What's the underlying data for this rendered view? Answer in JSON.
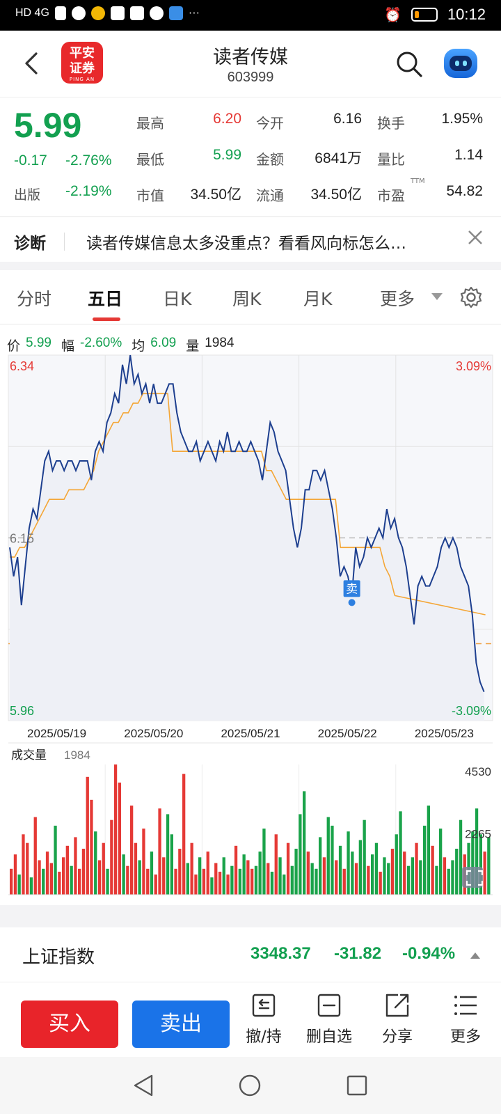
{
  "status_bar": {
    "left_indicators": "HD 4G",
    "more": "···",
    "time": "10:12",
    "battery_level": 0.2
  },
  "header": {
    "back_icon": "chevron-left-icon",
    "broker_logo": {
      "line1": "平安",
      "line2": "证券",
      "sub": "PING AN"
    },
    "title": "读者传媒",
    "code": "603999",
    "search_icon": "search-icon",
    "assistant_icon": "robot-icon"
  },
  "quote": {
    "price": "5.99",
    "change": "-0.17",
    "change_pct": "-2.76%",
    "sector_label": "出版",
    "sector_pct": "-2.19%",
    "fields": [
      {
        "label": "最高",
        "value": "6.20",
        "color": "red"
      },
      {
        "label": "今开",
        "value": "6.16",
        "color": "dark"
      },
      {
        "label": "换手",
        "value": "1.95%",
        "color": "dark"
      },
      {
        "label": "最低",
        "value": "5.99",
        "color": "green"
      },
      {
        "label": "金额",
        "value": "6841万",
        "color": "dark"
      },
      {
        "label": "量比",
        "value": "1.14",
        "color": "dark"
      },
      {
        "label": "市值",
        "value": "34.50亿",
        "color": "dark"
      },
      {
        "label": "流通",
        "value": "34.50亿",
        "color": "dark"
      },
      {
        "label": "市盈",
        "value": "54.82",
        "color": "dark",
        "superscript": "TTM"
      }
    ]
  },
  "diagnosis": {
    "label": "诊断",
    "message": "读者传媒信息太多没重点？看看风向标怎么…",
    "close_icon": "close-icon"
  },
  "tabs": {
    "items": [
      "分时",
      "五日",
      "日K",
      "周K",
      "月K",
      "更多"
    ],
    "active": "五日",
    "settings_icon": "gear-icon"
  },
  "info_line": {
    "price_label": "价",
    "price_value": "5.99",
    "range_label": "幅",
    "range_value": "-2.60%",
    "avg_label": "均",
    "avg_value": "6.09",
    "vol_label": "量",
    "vol_value": "1984"
  },
  "chart_data": {
    "type": "line",
    "title": "",
    "x_tick_labels": [
      "2025/05/19",
      "2025/05/20",
      "2025/05/21",
      "2025/05/22",
      "2025/05/23"
    ],
    "y_axis_left": {
      "top": "6.34",
      "mid": "6.15",
      "bottom": "5.96"
    },
    "y_axis_right": {
      "top": "3.09%",
      "bottom": "-3.09%"
    },
    "ylim": [
      5.96,
      6.34
    ],
    "prev_close": 6.15,
    "reference_dashed": 6.04,
    "series": [
      {
        "role": "price",
        "color": "#1d3f8f",
        "values": [
          6.14,
          6.11,
          6.13,
          6.08,
          6.12,
          6.16,
          6.18,
          6.17,
          6.2,
          6.23,
          6.24,
          6.22,
          6.23,
          6.23,
          6.22,
          6.23,
          6.23,
          6.22,
          6.23,
          6.23,
          6.23,
          6.21,
          6.24,
          6.25,
          6.24,
          6.27,
          6.28,
          6.3,
          6.29,
          6.33,
          6.31,
          6.34,
          6.31,
          6.32,
          6.3,
          6.31,
          6.29,
          6.31,
          6.29,
          6.29,
          6.3,
          6.31,
          6.31,
          6.28,
          6.26,
          6.25,
          6.24,
          6.24,
          6.25,
          6.23,
          6.24,
          6.25,
          6.24,
          6.23,
          6.25,
          6.24,
          6.26,
          6.24,
          6.24,
          6.25,
          6.24,
          6.24,
          6.25,
          6.24,
          6.23,
          6.21,
          6.24,
          6.27,
          6.26,
          6.24,
          6.23,
          6.22,
          6.19,
          6.16,
          6.14,
          6.16,
          6.2,
          6.2,
          6.22,
          6.22,
          6.21,
          6.22,
          6.2,
          6.18,
          6.15,
          6.11,
          6.12,
          6.11,
          6.09,
          6.14,
          6.12,
          6.13,
          6.15,
          6.14,
          6.15,
          6.16,
          6.15,
          6.18,
          6.16,
          6.17,
          6.15,
          6.14,
          6.12,
          6.09,
          6.06,
          6.1,
          6.11,
          6.1,
          6.1,
          6.11,
          6.12,
          6.14,
          6.15,
          6.14,
          6.15,
          6.14,
          6.12,
          6.11,
          6.1,
          6.07,
          6.02,
          6.0,
          5.99
        ]
      },
      {
        "role": "average",
        "color": "#f4a636",
        "values": [
          6.13,
          6.13,
          6.14,
          6.14,
          6.15,
          6.16,
          6.17,
          6.18,
          6.19,
          6.19,
          6.19,
          6.19,
          6.2,
          6.2,
          6.2,
          6.2,
          6.21,
          6.22,
          6.24,
          6.25,
          6.26,
          6.27,
          6.27,
          6.28,
          6.28,
          6.29,
          6.29,
          6.3,
          6.3,
          6.3,
          6.3,
          6.3,
          6.3,
          6.24,
          6.24,
          6.24,
          6.24,
          6.24,
          6.24,
          6.24,
          6.24,
          6.24,
          6.24,
          6.24,
          6.24,
          6.24,
          6.24,
          6.24,
          6.24,
          6.24,
          6.24,
          6.24,
          6.22,
          6.22,
          6.21,
          6.2,
          6.19,
          6.19,
          6.19,
          6.19,
          6.19,
          6.19,
          6.19,
          6.19,
          6.19,
          6.19,
          6.19,
          6.14,
          6.14,
          6.14,
          6.14,
          6.14,
          6.14,
          6.14,
          6.14,
          6.14,
          6.12,
          6.11,
          6.09
        ]
      }
    ],
    "annotation": {
      "label": "卖",
      "color": "#2d7fe0"
    },
    "volume": {
      "label": "成交量",
      "current": "1984",
      "max_label": "4530",
      "mid_label": "2265",
      "max": 4530,
      "up_color": "#e53935",
      "down_color": "#1aa34a",
      "bars": [
        {
          "v": 900,
          "d": "u"
        },
        {
          "v": 1400,
          "d": "u"
        },
        {
          "v": 700,
          "d": "d"
        },
        {
          "v": 2100,
          "d": "u"
        },
        {
          "v": 1800,
          "d": "u"
        },
        {
          "v": 600,
          "d": "d"
        },
        {
          "v": 2700,
          "d": "u"
        },
        {
          "v": 1200,
          "d": "u"
        },
        {
          "v": 900,
          "d": "d"
        },
        {
          "v": 1500,
          "d": "u"
        },
        {
          "v": 1100,
          "d": "u"
        },
        {
          "v": 2400,
          "d": "d"
        },
        {
          "v": 800,
          "d": "u"
        },
        {
          "v": 1300,
          "d": "u"
        },
        {
          "v": 1700,
          "d": "u"
        },
        {
          "v": 1000,
          "d": "d"
        },
        {
          "v": 2000,
          "d": "u"
        },
        {
          "v": 900,
          "d": "u"
        },
        {
          "v": 1600,
          "d": "u"
        },
        {
          "v": 4100,
          "d": "u"
        },
        {
          "v": 3300,
          "d": "u"
        },
        {
          "v": 2200,
          "d": "d"
        },
        {
          "v": 1200,
          "d": "u"
        },
        {
          "v": 1800,
          "d": "u"
        },
        {
          "v": 900,
          "d": "d"
        },
        {
          "v": 2600,
          "d": "u"
        },
        {
          "v": 4530,
          "d": "u"
        },
        {
          "v": 3900,
          "d": "u"
        },
        {
          "v": 1400,
          "d": "d"
        },
        {
          "v": 1000,
          "d": "u"
        },
        {
          "v": 3100,
          "d": "u"
        },
        {
          "v": 1800,
          "d": "u"
        },
        {
          "v": 1200,
          "d": "d"
        },
        {
          "v": 2300,
          "d": "u"
        },
        {
          "v": 900,
          "d": "u"
        },
        {
          "v": 1500,
          "d": "d"
        },
        {
          "v": 700,
          "d": "u"
        },
        {
          "v": 3000,
          "d": "u"
        },
        {
          "v": 1300,
          "d": "u"
        },
        {
          "v": 2800,
          "d": "d"
        },
        {
          "v": 2100,
          "d": "d"
        },
        {
          "v": 900,
          "d": "u"
        },
        {
          "v": 1600,
          "d": "u"
        },
        {
          "v": 4200,
          "d": "u"
        },
        {
          "v": 1100,
          "d": "d"
        },
        {
          "v": 1800,
          "d": "u"
        },
        {
          "v": 700,
          "d": "u"
        },
        {
          "v": 1300,
          "d": "d"
        },
        {
          "v": 900,
          "d": "u"
        },
        {
          "v": 1500,
          "d": "u"
        },
        {
          "v": 600,
          "d": "d"
        },
        {
          "v": 1100,
          "d": "u"
        },
        {
          "v": 800,
          "d": "u"
        },
        {
          "v": 1300,
          "d": "d"
        },
        {
          "v": 700,
          "d": "u"
        },
        {
          "v": 1000,
          "d": "d"
        },
        {
          "v": 1700,
          "d": "u"
        },
        {
          "v": 900,
          "d": "d"
        },
        {
          "v": 1400,
          "d": "d"
        },
        {
          "v": 1200,
          "d": "u"
        },
        {
          "v": 900,
          "d": "u"
        },
        {
          "v": 1000,
          "d": "d"
        },
        {
          "v": 1500,
          "d": "d"
        },
        {
          "v": 2300,
          "d": "d"
        },
        {
          "v": 1100,
          "d": "u"
        },
        {
          "v": 800,
          "d": "d"
        },
        {
          "v": 2100,
          "d": "u"
        },
        {
          "v": 1300,
          "d": "d"
        },
        {
          "v": 700,
          "d": "d"
        },
        {
          "v": 1800,
          "d": "u"
        },
        {
          "v": 1000,
          "d": "d"
        },
        {
          "v": 1600,
          "d": "d"
        },
        {
          "v": 2800,
          "d": "d"
        },
        {
          "v": 3600,
          "d": "d"
        },
        {
          "v": 1500,
          "d": "u"
        },
        {
          "v": 1100,
          "d": "d"
        },
        {
          "v": 900,
          "d": "d"
        },
        {
          "v": 2000,
          "d": "d"
        },
        {
          "v": 1300,
          "d": "u"
        },
        {
          "v": 2700,
          "d": "d"
        },
        {
          "v": 2400,
          "d": "d"
        },
        {
          "v": 1200,
          "d": "u"
        },
        {
          "v": 1700,
          "d": "d"
        },
        {
          "v": 900,
          "d": "u"
        },
        {
          "v": 2200,
          "d": "d"
        },
        {
          "v": 1500,
          "d": "d"
        },
        {
          "v": 1100,
          "d": "u"
        },
        {
          "v": 1900,
          "d": "d"
        },
        {
          "v": 2600,
          "d": "d"
        },
        {
          "v": 1000,
          "d": "u"
        },
        {
          "v": 1400,
          "d": "d"
        },
        {
          "v": 1800,
          "d": "d"
        },
        {
          "v": 800,
          "d": "u"
        },
        {
          "v": 1300,
          "d": "d"
        },
        {
          "v": 1100,
          "d": "d"
        },
        {
          "v": 1600,
          "d": "u"
        },
        {
          "v": 2100,
          "d": "d"
        },
        {
          "v": 2900,
          "d": "d"
        },
        {
          "v": 1500,
          "d": "u"
        },
        {
          "v": 1000,
          "d": "d"
        },
        {
          "v": 1300,
          "d": "d"
        },
        {
          "v": 1800,
          "d": "u"
        },
        {
          "v": 1200,
          "d": "d"
        },
        {
          "v": 2400,
          "d": "d"
        },
        {
          "v": 3100,
          "d": "d"
        },
        {
          "v": 1700,
          "d": "u"
        },
        {
          "v": 1000,
          "d": "d"
        },
        {
          "v": 2300,
          "d": "d"
        },
        {
          "v": 1300,
          "d": "u"
        },
        {
          "v": 900,
          "d": "d"
        },
        {
          "v": 1200,
          "d": "d"
        },
        {
          "v": 1600,
          "d": "d"
        },
        {
          "v": 2600,
          "d": "d"
        },
        {
          "v": 1400,
          "d": "u"
        },
        {
          "v": 1800,
          "d": "d"
        },
        {
          "v": 2200,
          "d": "d"
        },
        {
          "v": 3000,
          "d": "d"
        },
        {
          "v": 2100,
          "d": "d"
        },
        {
          "v": 1500,
          "d": "u"
        },
        {
          "v": 2000,
          "d": "d"
        }
      ]
    }
  },
  "index_bar": {
    "name": "上证指数",
    "value": "3348.37",
    "change": "-31.82",
    "change_pct": "-0.94%"
  },
  "toolbar": {
    "buy_label": "买入",
    "sell_label": "卖出",
    "tools": [
      {
        "label": "撤/持",
        "icon": "withdraw-icon"
      },
      {
        "label": "删自选",
        "icon": "remove-watchlist-icon"
      },
      {
        "label": "分享",
        "icon": "share-icon"
      },
      {
        "label": "更多",
        "icon": "menu-icon"
      }
    ]
  },
  "nav_bar": {
    "back_icon": "nav-back-icon",
    "home_icon": "nav-home-icon",
    "recents_icon": "nav-recents-icon"
  }
}
